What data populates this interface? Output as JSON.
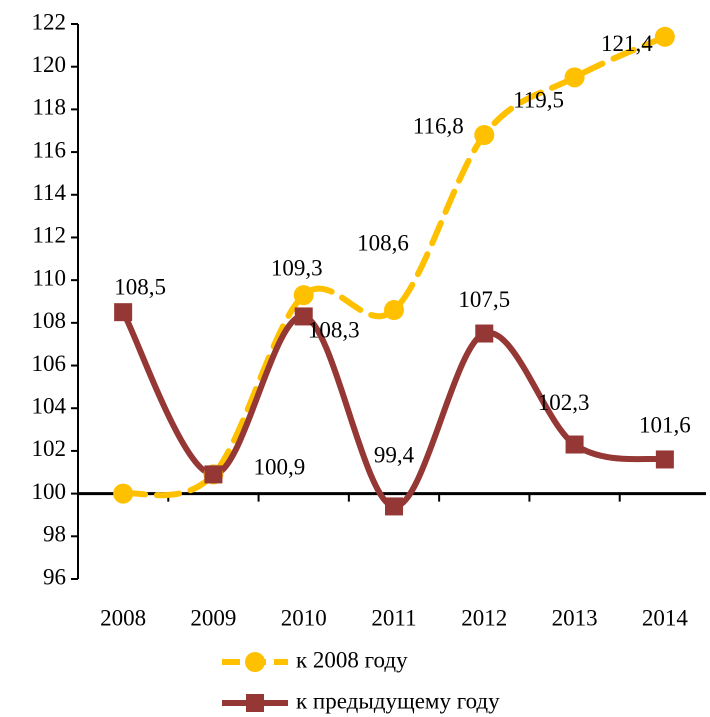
{
  "chart_data": {
    "type": "line",
    "categories": [
      "2008",
      "2009",
      "2010",
      "2011",
      "2012",
      "2013",
      "2014"
    ],
    "series": [
      {
        "name": "к 2008 году",
        "color": "#ffc000",
        "dashed": true,
        "marker": "circle",
        "values": [
          100,
          100.9,
          109.3,
          108.6,
          116.8,
          119.5,
          121.4
        ],
        "value_labels": [
          null,
          null,
          "109,3",
          "108,6",
          "116,8",
          "119,5",
          "121,4"
        ]
      },
      {
        "name": "к предыдущему году",
        "color": "#953735",
        "dashed": false,
        "marker": "square",
        "values": [
          108.5,
          100.9,
          108.3,
          99.4,
          107.5,
          102.3,
          101.6
        ],
        "value_labels": [
          "108,5",
          "100,9",
          "108,3",
          "99,4",
          "107,5",
          "102,3",
          "101,6"
        ]
      }
    ],
    "ylim": [
      96,
      122
    ],
    "yticks": [
      96,
      98,
      100,
      102,
      104,
      106,
      108,
      110,
      112,
      114,
      116,
      118,
      120,
      122
    ],
    "x_axis_at": 100,
    "grid": false,
    "legend": "bottom"
  }
}
